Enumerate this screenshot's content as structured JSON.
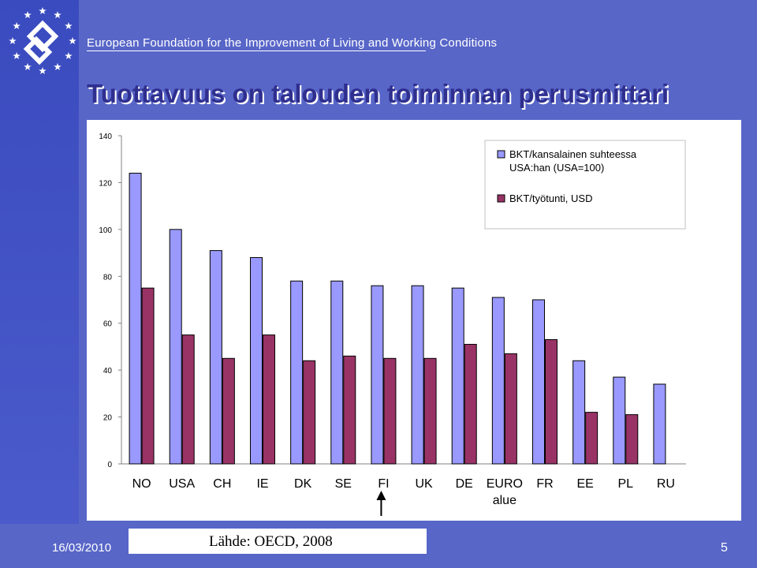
{
  "header": {
    "org_name": "European Foundation for the Improvement of Living and Working Conditions"
  },
  "slide": {
    "title": "Tuottavuus on talouden toiminnan perusmittari"
  },
  "footer": {
    "date": "16/03/2010",
    "source": "Lähde: OECD, 2008",
    "page": "5"
  },
  "colors": {
    "background": "#5866c8",
    "title": "#2f2f8f",
    "series1": "#9999ff",
    "series2": "#993366"
  },
  "chart_data": {
    "type": "bar",
    "categories": [
      "NO",
      "USA",
      "CH",
      "IE",
      "DK",
      "SE",
      "FI",
      "UK",
      "DE",
      "EURO alue",
      "FR",
      "EE",
      "PL",
      "RU"
    ],
    "category_lines": [
      [
        "NO"
      ],
      [
        "USA"
      ],
      [
        "CH"
      ],
      [
        "IE"
      ],
      [
        "DK"
      ],
      [
        "SE"
      ],
      [
        "FI"
      ],
      [
        "UK"
      ],
      [
        "DE"
      ],
      [
        "EURO",
        "alue"
      ],
      [
        "FR"
      ],
      [
        "EE"
      ],
      [
        "PL"
      ],
      [
        "RU"
      ]
    ],
    "series": [
      {
        "name": "BKT/kansalainen suhteessa USA:han (USA=100)",
        "legend_lines": [
          "BKT/kansalainen suhteessa",
          "USA:han (USA=100)"
        ],
        "values": [
          124,
          100,
          91,
          88,
          78,
          78,
          76,
          76,
          75,
          71,
          70,
          44,
          37,
          34
        ]
      },
      {
        "name": "BKT/työtunti, USD",
        "legend_lines": [
          "BKT/työtunti, USD"
        ],
        "values": [
          75,
          55,
          45,
          55,
          44,
          46,
          45,
          45,
          51,
          47,
          53,
          22,
          21,
          null
        ]
      }
    ],
    "ylim": [
      0,
      140
    ],
    "yticks": [
      0,
      20,
      40,
      60,
      80,
      100,
      120,
      140
    ],
    "legend_position": "top-right",
    "highlight_category": "FI",
    "grid": false
  }
}
